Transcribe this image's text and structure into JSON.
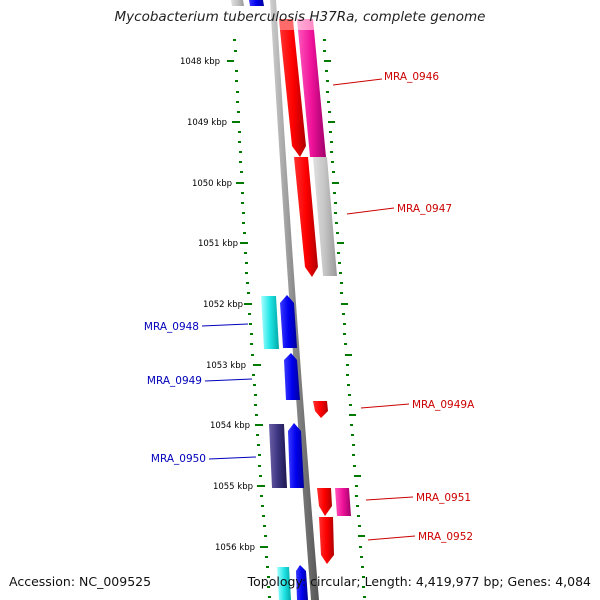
{
  "title": "Mycobacterium tuberculosis H37Ra, complete genome",
  "footer": {
    "accession": "Accession: NC_009525",
    "topology": "Topology: circular; Length: 4,419,977 bp; Genes: 4,084"
  },
  "colors": {
    "forward_label": "#cc0000",
    "reverse_label": "#0000bb",
    "tick": "#007a00",
    "backbone": "#888888"
  },
  "ticks": [
    "1048 kbp",
    "1049 kbp",
    "1050 kbp",
    "1051 kbp",
    "1052 kbp",
    "1053 kbp",
    "1054 kbp",
    "1055 kbp",
    "1056 kbp"
  ],
  "genes": [
    {
      "label": "MRA_0946",
      "strand": "forward"
    },
    {
      "label": "MRA_0947",
      "strand": "forward"
    },
    {
      "label": "MRA_0948",
      "strand": "reverse"
    },
    {
      "label": "MRA_0949",
      "strand": "reverse"
    },
    {
      "label": "MRA_0949A",
      "strand": "forward"
    },
    {
      "label": "MRA_0950",
      "strand": "reverse"
    },
    {
      "label": "MRA_0951",
      "strand": "forward"
    },
    {
      "label": "MRA_0952",
      "strand": "forward"
    }
  ]
}
